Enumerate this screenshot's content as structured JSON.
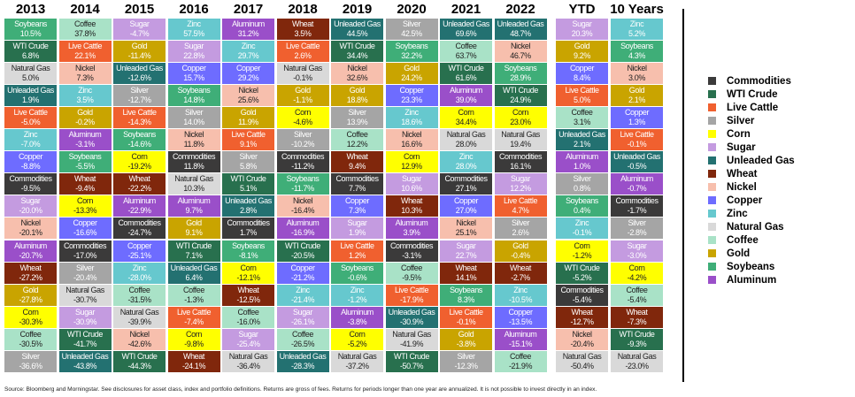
{
  "chart_data": {
    "type": "table",
    "title": "",
    "colors": {
      "Commodities": "#3b3a3a",
      "WTI Crude": "#28704e",
      "Live Cattle": "#f0602f",
      "Silver": "#a5a5a5",
      "Corn": "#ffff00",
      "Sugar": "#c49be0",
      "Unleaded Gas": "#237171",
      "Wheat": "#80270c",
      "Nickel": "#f7bfad",
      "Copper": "#6e6cff",
      "Zinc": "#66c8ce",
      "Natural Gas": "#d9d9d9",
      "Coffee": "#a9e2c7",
      "Gold": "#c9a400",
      "Soybeans": "#3fae78",
      "Aluminum": "#9a4fc9"
    },
    "dark_text": [
      "Corn",
      "Nickel",
      "Natural Gas",
      "Coffee"
    ],
    "legend": [
      "Commodities",
      "WTI Crude",
      "Live Cattle",
      "Silver",
      "Corn",
      "Sugar",
      "Unleaded Gas",
      "Wheat",
      "Nickel",
      "Copper",
      "Zinc",
      "Natural Gas",
      "Coffee",
      "Gold",
      "Soybeans",
      "Aluminum"
    ],
    "columns": [
      {
        "year": "2013",
        "cells": [
          [
            "Soybeans",
            "10.5%"
          ],
          [
            "WTI Crude",
            "6.8%"
          ],
          [
            "Natural Gas",
            "5.0%"
          ],
          [
            "Unleaded Gas",
            "1.9%"
          ],
          [
            "Live Cattle",
            "-5.0%"
          ],
          [
            "Zinc",
            "-7.0%"
          ],
          [
            "Copper",
            "-8.8%"
          ],
          [
            "Commodities",
            "-9.5%"
          ],
          [
            "Sugar",
            "-20.0%"
          ],
          [
            "Nickel",
            "-20.1%"
          ],
          [
            "Aluminum",
            "-20.7%"
          ],
          [
            "Wheat",
            "-27.2%"
          ],
          [
            "Gold",
            "-27.8%"
          ],
          [
            "Corn",
            "-30.3%"
          ],
          [
            "Coffee",
            "-30.5%"
          ],
          [
            "Silver",
            "-36.6%"
          ]
        ]
      },
      {
        "year": "2014",
        "cells": [
          [
            "Coffee",
            "37.8%"
          ],
          [
            "Live Cattle",
            "22.1%"
          ],
          [
            "Nickel",
            "7.3%"
          ],
          [
            "Zinc",
            "3.5%"
          ],
          [
            "Gold",
            "-0.2%"
          ],
          [
            "Aluminum",
            "-3.1%"
          ],
          [
            "Soybeans",
            "-5.5%"
          ],
          [
            "Wheat",
            "-9.4%"
          ],
          [
            "Corn",
            "-13.3%"
          ],
          [
            "Copper",
            "-16.6%"
          ],
          [
            "Commodities",
            "-17.0%"
          ],
          [
            "Silver",
            "-20.4%"
          ],
          [
            "Natural Gas",
            "-30.7%"
          ],
          [
            "Sugar",
            "-30.9%"
          ],
          [
            "WTI Crude",
            "-41.7%"
          ],
          [
            "Unleaded Gas",
            "-43.8%"
          ]
        ]
      },
      {
        "year": "2015",
        "cells": [
          [
            "Sugar",
            "-4.7%"
          ],
          [
            "Gold",
            "-11.4%"
          ],
          [
            "Unleaded Gas",
            "-12.6%"
          ],
          [
            "Silver",
            "-12.7%"
          ],
          [
            "Live Cattle",
            "-14.3%"
          ],
          [
            "Soybeans",
            "-14.6%"
          ],
          [
            "Corn",
            "-19.2%"
          ],
          [
            "Wheat",
            "-22.2%"
          ],
          [
            "Aluminum",
            "-22.9%"
          ],
          [
            "Commodities",
            "-24.7%"
          ],
          [
            "Copper",
            "-25.1%"
          ],
          [
            "Zinc",
            "-28.0%"
          ],
          [
            "Coffee",
            "-31.5%"
          ],
          [
            "Natural Gas",
            "-39.9%"
          ],
          [
            "Nickel",
            "-42.6%"
          ],
          [
            "WTI Crude",
            "-44.3%"
          ]
        ]
      },
      {
        "year": "2016",
        "cells": [
          [
            "Zinc",
            "57.5%"
          ],
          [
            "Sugar",
            "22.8%"
          ],
          [
            "Copper",
            "15.7%"
          ],
          [
            "Soybeans",
            "14.8%"
          ],
          [
            "Silver",
            "14.0%"
          ],
          [
            "Nickel",
            "11.8%"
          ],
          [
            "Commodities",
            "11.8%"
          ],
          [
            "Natural Gas",
            "10.3%"
          ],
          [
            "Aluminum",
            "9.7%"
          ],
          [
            "Gold",
            "9.1%"
          ],
          [
            "WTI Crude",
            "7.1%"
          ],
          [
            "Unleaded Gas",
            "6.4%"
          ],
          [
            "Coffee",
            "-1.3%"
          ],
          [
            "Live Cattle",
            "-7.4%"
          ],
          [
            "Corn",
            "-9.8%"
          ],
          [
            "Wheat",
            "-24.1%"
          ]
        ]
      },
      {
        "year": "2017",
        "cells": [
          [
            "Aluminum",
            "31.2%"
          ],
          [
            "Zinc",
            "29.7%"
          ],
          [
            "Copper",
            "29.2%"
          ],
          [
            "Nickel",
            "25.6%"
          ],
          [
            "Gold",
            "11.9%"
          ],
          [
            "Live Cattle",
            "9.1%"
          ],
          [
            "Silver",
            "5.8%"
          ],
          [
            "WTI Crude",
            "5.1%"
          ],
          [
            "Unleaded Gas",
            "2.8%"
          ],
          [
            "Commodities",
            "1.7%"
          ],
          [
            "Soybeans",
            "-8.1%"
          ],
          [
            "Corn",
            "-12.1%"
          ],
          [
            "Wheat",
            "-12.5%"
          ],
          [
            "Coffee",
            "-16.0%"
          ],
          [
            "Sugar",
            "-25.4%"
          ],
          [
            "Natural Gas",
            "-36.4%"
          ]
        ]
      },
      {
        "year": "2018",
        "cells": [
          [
            "Wheat",
            "3.5%"
          ],
          [
            "Live Cattle",
            "2.6%"
          ],
          [
            "Natural Gas",
            "-0.1%"
          ],
          [
            "Gold",
            "-1.1%"
          ],
          [
            "Corn",
            "-4.6%"
          ],
          [
            "Silver",
            "-10.2%"
          ],
          [
            "Commodities",
            "-11.2%"
          ],
          [
            "Soybeans",
            "-11.7%"
          ],
          [
            "Nickel",
            "-16.4%"
          ],
          [
            "Aluminum",
            "-16.9%"
          ],
          [
            "WTI Crude",
            "-20.5%"
          ],
          [
            "Copper",
            "-21.2%"
          ],
          [
            "Zinc",
            "-21.4%"
          ],
          [
            "Sugar",
            "-26.1%"
          ],
          [
            "Coffee",
            "-26.5%"
          ],
          [
            "Unleaded Gas",
            "-28.3%"
          ]
        ]
      },
      {
        "year": "2019",
        "cells": [
          [
            "Unleaded Gas",
            "44.5%"
          ],
          [
            "WTI Crude",
            "34.4%"
          ],
          [
            "Nickel",
            "32.6%"
          ],
          [
            "Gold",
            "18.8%"
          ],
          [
            "Silver",
            "13.9%"
          ],
          [
            "Coffee",
            "12.2%"
          ],
          [
            "Wheat",
            "9.4%"
          ],
          [
            "Commodities",
            "7.7%"
          ],
          [
            "Copper",
            "7.3%"
          ],
          [
            "Sugar",
            "1.9%"
          ],
          [
            "Live Cattle",
            "1.2%"
          ],
          [
            "Soybeans",
            "-0.6%"
          ],
          [
            "Zinc",
            "-1.2%"
          ],
          [
            "Aluminum",
            "-3.8%"
          ],
          [
            "Corn",
            "-5.2%"
          ],
          [
            "Natural Gas",
            "-37.2%"
          ]
        ]
      },
      {
        "year": "2020",
        "cells": [
          [
            "Silver",
            "42.5%"
          ],
          [
            "Soybeans",
            "32.2%"
          ],
          [
            "Gold",
            "24.2%"
          ],
          [
            "Copper",
            "23.3%"
          ],
          [
            "Zinc",
            "18.6%"
          ],
          [
            "Nickel",
            "16.6%"
          ],
          [
            "Corn",
            "12.9%"
          ],
          [
            "Sugar",
            "10.6%"
          ],
          [
            "Wheat",
            "10.3%"
          ],
          [
            "Aluminum",
            "3.9%"
          ],
          [
            "Commodities",
            "-3.1%"
          ],
          [
            "Coffee",
            "-9.5%"
          ],
          [
            "Live Cattle",
            "-17.9%"
          ],
          [
            "Unleaded Gas",
            "-30.9%"
          ],
          [
            "Natural Gas",
            "-41.9%"
          ],
          [
            "WTI Crude",
            "-50.7%"
          ]
        ]
      },
      {
        "year": "2021",
        "cells": [
          [
            "Unleaded Gas",
            "69.6%"
          ],
          [
            "Coffee",
            "63.7%"
          ],
          [
            "WTI Crude",
            "61.6%"
          ],
          [
            "Aluminum",
            "39.0%"
          ],
          [
            "Corn",
            "34.4%"
          ],
          [
            "Natural Gas",
            "28.0%"
          ],
          [
            "Zinc",
            "28.0%"
          ],
          [
            "Commodities",
            "27.1%"
          ],
          [
            "Copper",
            "27.0%"
          ],
          [
            "Nickel",
            "25.1%"
          ],
          [
            "Sugar",
            "22.7%"
          ],
          [
            "Wheat",
            "14.1%"
          ],
          [
            "Soybeans",
            "8.3%"
          ],
          [
            "Live Cattle",
            "-0.1%"
          ],
          [
            "Gold",
            "-3.8%"
          ],
          [
            "Silver",
            "-12.3%"
          ]
        ]
      },
      {
        "year": "2022",
        "cells": [
          [
            "Unleaded Gas",
            "48.7%"
          ],
          [
            "Nickel",
            "46.7%"
          ],
          [
            "Soybeans",
            "28.9%"
          ],
          [
            "WTI Crude",
            "24.9%"
          ],
          [
            "Corn",
            "23.0%"
          ],
          [
            "Natural Gas",
            "19.4%"
          ],
          [
            "Commodities",
            "16.1%"
          ],
          [
            "Sugar",
            "12.2%"
          ],
          [
            "Live Cattle",
            "4.7%"
          ],
          [
            "Silver",
            "2.6%"
          ],
          [
            "Gold",
            "-0.4%"
          ],
          [
            "Wheat",
            "-2.7%"
          ],
          [
            "Zinc",
            "-10.5%"
          ],
          [
            "Copper",
            "-13.5%"
          ],
          [
            "Aluminum",
            "-15.1%"
          ],
          [
            "Coffee",
            "-21.9%"
          ]
        ]
      },
      {
        "year": "YTD",
        "cells": [
          [
            "Sugar",
            "20.3%"
          ],
          [
            "Gold",
            "9.2%"
          ],
          [
            "Copper",
            "8.4%"
          ],
          [
            "Live Cattle",
            "5.0%"
          ],
          [
            "Coffee",
            "3.1%"
          ],
          [
            "Unleaded Gas",
            "2.1%"
          ],
          [
            "Aluminum",
            "1.0%"
          ],
          [
            "Silver",
            "0.8%"
          ],
          [
            "Soybeans",
            "0.4%"
          ],
          [
            "Zinc",
            "-0.1%"
          ],
          [
            "Corn",
            "-1.2%"
          ],
          [
            "WTI Crude",
            "-5.2%"
          ],
          [
            "Commodities",
            "-5.4%"
          ],
          [
            "Wheat",
            "-12.7%"
          ],
          [
            "Nickel",
            "-20.4%"
          ],
          [
            "Natural Gas",
            "-50.4%"
          ]
        ]
      },
      {
        "year": "10 Years",
        "cells": [
          [
            "Zinc",
            "5.2%"
          ],
          [
            "Soybeans",
            "4.3%"
          ],
          [
            "Nickel",
            "3.0%"
          ],
          [
            "Gold",
            "2.1%"
          ],
          [
            "Copper",
            "1.3%"
          ],
          [
            "Live Cattle",
            "-0.1%"
          ],
          [
            "Unleaded Gas",
            "-0.5%"
          ],
          [
            "Aluminum",
            "-0.7%"
          ],
          [
            "Commodities",
            "-1.7%"
          ],
          [
            "Silver",
            "-2.8%"
          ],
          [
            "Sugar",
            "-3.0%"
          ],
          [
            "Corn",
            "-4.2%"
          ],
          [
            "Coffee",
            "-5.4%"
          ],
          [
            "Wheat",
            "-7.3%"
          ],
          [
            "WTI Crude",
            "-9.3%"
          ],
          [
            "Natural Gas",
            "-23.0%"
          ]
        ]
      }
    ]
  },
  "footnote": "Source: Bloomberg and Morningstar. See disclosures for asset class, index and portfolio definitions. Returns are gross of fees. Returns for periods longer than one year are annualized. It is not possible to invest directly in an index."
}
